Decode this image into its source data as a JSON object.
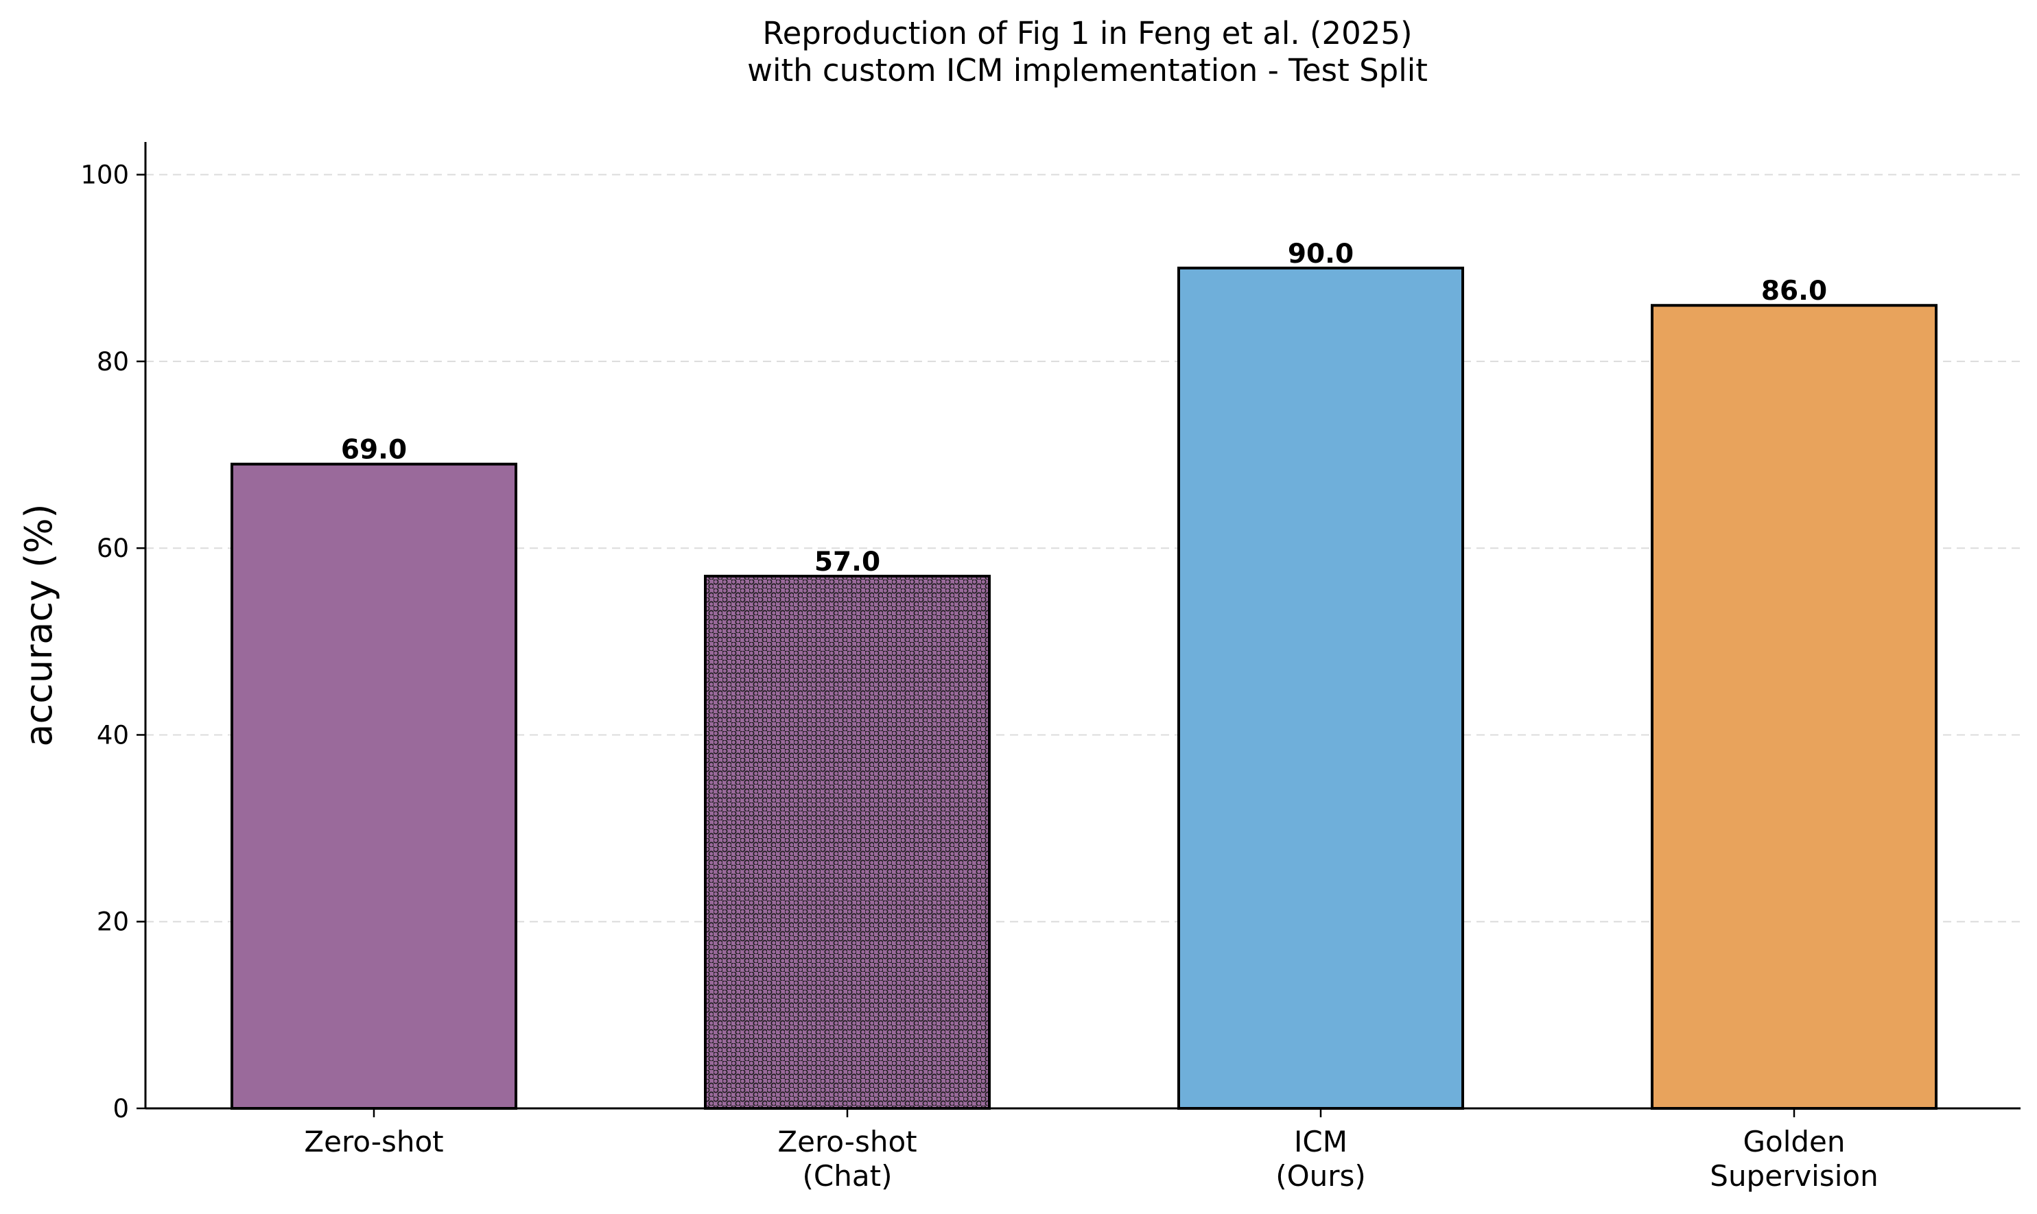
{
  "chart_data": {
    "type": "bar",
    "title": "Reproduction of Fig 1 in Feng et al. (2025)\nwith custom ICM implementation - Test Split",
    "xlabel": "",
    "ylabel": "accuracy (%)",
    "ylim": [
      0,
      103.5
    ],
    "yticks": [
      0,
      20,
      40,
      60,
      80,
      100
    ],
    "grid": "y-dashed",
    "categories": [
      "Zero-shot",
      "Zero-shot\n(Chat)",
      "ICM\n(Ours)",
      "Golden\nSupervision"
    ],
    "values": [
      69.0,
      57.0,
      90.0,
      86.0
    ],
    "value_labels": [
      "69.0",
      "57.0",
      "90.0",
      "86.0"
    ],
    "colors": [
      "#9a6a9b",
      "#9a6a9b",
      "#6fafda",
      "#e8a35c"
    ],
    "hatch": [
      false,
      true,
      false,
      false
    ]
  }
}
